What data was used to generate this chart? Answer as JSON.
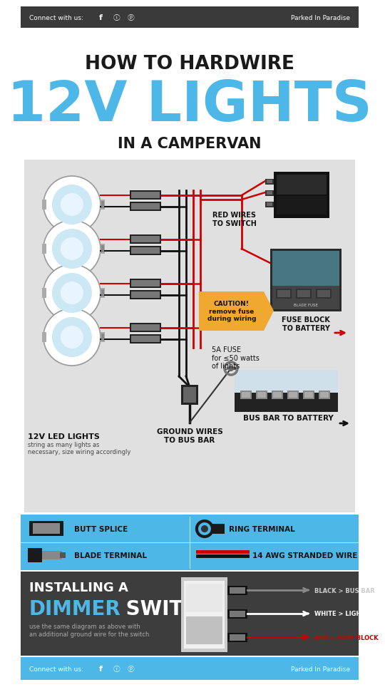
{
  "bg_color": "#ffffff",
  "header_bg": "#3a3a3a",
  "header_text": "Connect with us:  f  ⓘ  ⓟ",
  "header_brand": "Parked In Paradise",
  "header_color": "#ffffff",
  "title1": "HOW TO HARDWIRE",
  "title2": "12V LIGHTS",
  "title3": "IN A CAMPERVAN",
  "title1_color": "#1a1a1a",
  "title2_color": "#4db8e8",
  "title3_color": "#1a1a1a",
  "diagram_bg": "#e0e0e0",
  "blue_accent": "#4db8e8",
  "orange_accent": "#f0a830",
  "dark_bg": "#3d3d3d",
  "red_wire": "#cc0000",
  "black_wire": "#111111",
  "label_red_wires": "RED WIRES\nTO SWITCH",
  "label_ground": "GROUND WIRES\nTO BUS BAR",
  "label_led": "12V LED LIGHTS",
  "label_led_sub": "string as many lights as\nnecessary, size wiring accordingly",
  "label_fuse": "5A FUSE\nfor ≤50 watts\nof lights",
  "label_caution": "CAUTION!\nremove fuse\nduring wiring",
  "label_fuse_block": "FUSE BLOCK\nTO BATTERY",
  "label_bus_bar": "BUS BAR TO BATTERY",
  "legend_items": [
    {
      "label": "BUTT SPLICE"
    },
    {
      "label": "RING TERMINAL"
    },
    {
      "label": "BLADE TERMINAL"
    },
    {
      "label": "14 AWG STRANDED WIRE"
    }
  ],
  "dimmer_title1": "INSTALLING A",
  "dimmer_title2": "DIMMER",
  "dimmer_title3": " SWITCH",
  "dimmer_sub": "use the same diagram as above with\nan additional ground wire for the switch",
  "dimmer_labels": [
    {
      "text": "BLACK > BUS BAR",
      "color": "#cccccc",
      "arrow": "#888888"
    },
    {
      "text": "WHITE > LIGHTS",
      "color": "#ffffff",
      "arrow": "#ffffff"
    },
    {
      "text": "RED > FUSE BLOCK",
      "color": "#cc0000",
      "arrow": "#cc0000"
    }
  ],
  "footer_bg": "#4db8e8",
  "footer_brand": "Parked In Paradise"
}
